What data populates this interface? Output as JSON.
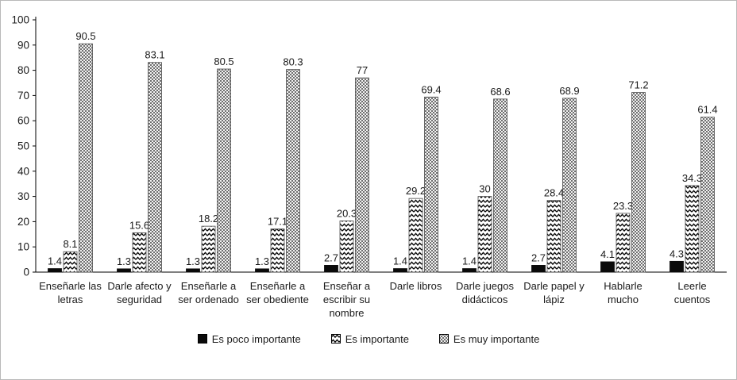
{
  "chart_data": {
    "type": "bar",
    "title": "",
    "xlabel": "",
    "ylabel": "",
    "ylim": [
      0,
      100
    ],
    "yticks": [
      0,
      10,
      20,
      30,
      40,
      50,
      60,
      70,
      80,
      90,
      100
    ],
    "grid": false,
    "legend_position": "bottom",
    "categories": [
      "Enseñarle las letras",
      "Darle afecto y seguridad",
      "Enseñarle a ser ordenado",
      "Enseñarle a ser obediente",
      "Enseñar a escribir su nombre",
      "Darle libros",
      "Darle juegos didácticos",
      "Darle papel y lápiz",
      "Hablarle mucho",
      "Leerle cuentos"
    ],
    "series": [
      {
        "name": "Es poco importante",
        "pattern": "solid-black",
        "values": [
          1.4,
          1.3,
          1.3,
          1.3,
          2.7,
          1.4,
          1.4,
          2.7,
          4.1,
          4.3
        ]
      },
      {
        "name": "Es importante",
        "pattern": "zigzag",
        "values": [
          8.1,
          15.6,
          18.2,
          17.1,
          20.3,
          29.2,
          30,
          28.4,
          23.3,
          34.3
        ]
      },
      {
        "name": "Es muy importante",
        "pattern": "checker",
        "values": [
          90.5,
          83.1,
          80.5,
          80.3,
          77,
          69.4,
          68.6,
          68.9,
          71.2,
          61.4
        ]
      }
    ],
    "colors": {
      "bar_solid": "#0a0a0a",
      "bar_outline": "#4a4a4a",
      "axis": "#000000"
    }
  }
}
